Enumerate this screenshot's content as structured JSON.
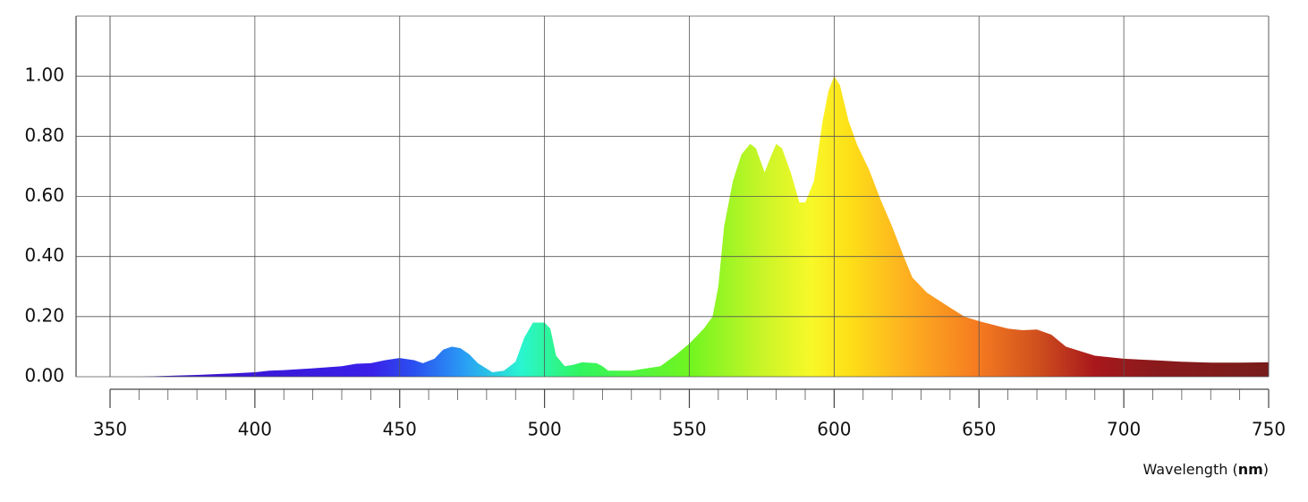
{
  "chart_data": {
    "type": "area",
    "x_label_parts": [
      "Wavelength (",
      "nm",
      ")"
    ],
    "x": [
      360,
      370,
      380,
      390,
      400,
      405,
      410,
      420,
      430,
      435,
      440,
      445,
      450,
      455,
      458,
      462,
      465,
      468,
      471,
      474,
      477,
      482,
      486,
      490,
      493,
      496,
      500,
      502,
      504,
      507,
      510,
      513,
      518,
      520,
      522,
      530,
      540,
      545,
      550,
      555,
      558,
      560,
      562,
      565,
      568,
      571,
      573,
      576,
      578,
      580,
      582,
      585,
      588,
      590,
      593,
      596,
      598,
      600,
      602,
      605,
      608,
      612,
      616,
      620,
      624,
      627,
      632,
      640,
      645,
      650,
      660,
      665,
      670,
      675,
      680,
      690,
      700,
      710,
      720,
      730,
      740,
      750
    ],
    "values": [
      0,
      0.003,
      0.006,
      0.01,
      0.015,
      0.02,
      0.022,
      0.028,
      0.035,
      0.043,
      0.045,
      0.055,
      0.062,
      0.055,
      0.045,
      0.06,
      0.09,
      0.1,
      0.095,
      0.075,
      0.045,
      0.015,
      0.02,
      0.05,
      0.13,
      0.18,
      0.18,
      0.16,
      0.07,
      0.035,
      0.04,
      0.048,
      0.045,
      0.035,
      0.02,
      0.02,
      0.035,
      0.07,
      0.11,
      0.16,
      0.2,
      0.3,
      0.5,
      0.65,
      0.74,
      0.775,
      0.76,
      0.68,
      0.73,
      0.775,
      0.76,
      0.68,
      0.58,
      0.58,
      0.65,
      0.85,
      0.95,
      1.0,
      0.97,
      0.85,
      0.77,
      0.69,
      0.59,
      0.5,
      0.4,
      0.33,
      0.28,
      0.23,
      0.2,
      0.185,
      0.16,
      0.155,
      0.157,
      0.14,
      0.1,
      0.07,
      0.06,
      0.055,
      0.05,
      0.047,
      0.047,
      0.048
    ],
    "gradient": [
      {
        "x": 360,
        "color": "#3a10c8"
      },
      {
        "x": 440,
        "color": "#3a20e8"
      },
      {
        "x": 455,
        "color": "#2a50f0"
      },
      {
        "x": 472,
        "color": "#2a9cf5"
      },
      {
        "x": 492,
        "color": "#2af5d0"
      },
      {
        "x": 512,
        "color": "#30f560"
      },
      {
        "x": 550,
        "color": "#70f520"
      },
      {
        "x": 575,
        "color": "#c8f528"
      },
      {
        "x": 592,
        "color": "#f8f828"
      },
      {
        "x": 605,
        "color": "#fde018"
      },
      {
        "x": 625,
        "color": "#fdb020"
      },
      {
        "x": 650,
        "color": "#f57a20"
      },
      {
        "x": 670,
        "color": "#d0501e"
      },
      {
        "x": 690,
        "color": "#a8181c"
      },
      {
        "x": 710,
        "color": "#8a1a1c"
      },
      {
        "x": 750,
        "color": "#781c1c"
      }
    ],
    "xlim": [
      350,
      750
    ],
    "xticks": [
      350,
      400,
      450,
      500,
      550,
      600,
      650,
      700,
      750
    ],
    "xminorticks": [
      360,
      370,
      380,
      390,
      410,
      420,
      430,
      440,
      460,
      470,
      480,
      490,
      510,
      520,
      530,
      540,
      560,
      570,
      580,
      590,
      610,
      620,
      630,
      640,
      660,
      670,
      680,
      690,
      710,
      720,
      730,
      740
    ],
    "ylim": [
      0,
      1.2
    ],
    "yticks": [
      {
        "value": 0,
        "label": "0.00"
      },
      {
        "value": 0.2,
        "label": "0.20"
      },
      {
        "value": 0.4,
        "label": "0.40"
      },
      {
        "value": 0.6,
        "label": "0.60"
      },
      {
        "value": 0.8,
        "label": "0.80"
      },
      {
        "value": 1,
        "label": "1.00"
      }
    ],
    "grid": true
  }
}
